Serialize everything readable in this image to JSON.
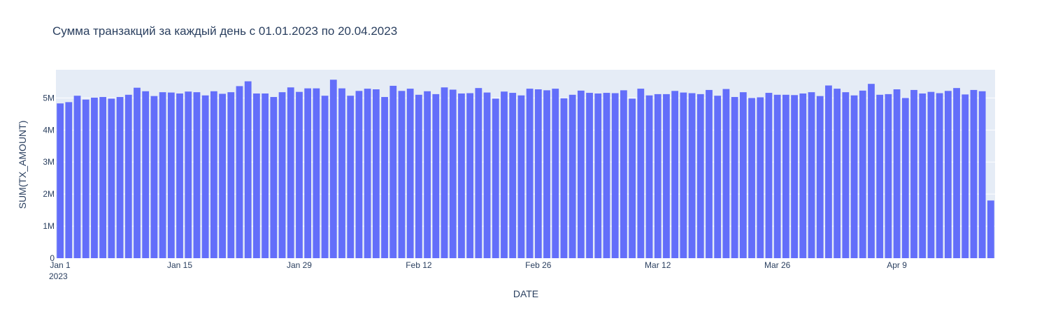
{
  "chart_data": {
    "type": "bar",
    "title": "Сумма транзакций за каждый день с 01.01.2023 по 20.04.2023",
    "xlabel": "DATE",
    "ylabel": "SUM(TX_AMOUNT)",
    "x_start": "2023-01-01",
    "x_end": "2023-04-20",
    "ylim": [
      0,
      5880000
    ],
    "grid": true,
    "legend": "none",
    "colors": {
      "bar": "#636efa",
      "plot_bg": "#e5ecf6",
      "grid": "#ffffff",
      "text": "#2a3f5f"
    },
    "y_ticks": [
      {
        "value": 0,
        "label": "0"
      },
      {
        "value": 1000000,
        "label": "1M"
      },
      {
        "value": 2000000,
        "label": "2M"
      },
      {
        "value": 3000000,
        "label": "3M"
      },
      {
        "value": 4000000,
        "label": "4M"
      },
      {
        "value": 5000000,
        "label": "5M"
      }
    ],
    "x_ticks": [
      {
        "date": "2023-01-01",
        "label": "Jan 1",
        "sublabel": "2023"
      },
      {
        "date": "2023-01-15",
        "label": "Jan 15",
        "sublabel": ""
      },
      {
        "date": "2023-01-29",
        "label": "Jan 29",
        "sublabel": ""
      },
      {
        "date": "2023-02-12",
        "label": "Feb 12",
        "sublabel": ""
      },
      {
        "date": "2023-02-26",
        "label": "Feb 26",
        "sublabel": ""
      },
      {
        "date": "2023-03-12",
        "label": "Mar 12",
        "sublabel": ""
      },
      {
        "date": "2023-03-26",
        "label": "Mar 26",
        "sublabel": ""
      },
      {
        "date": "2023-04-09",
        "label": "Apr 9",
        "sublabel": ""
      }
    ],
    "values": [
      4830000,
      4870000,
      5070000,
      4950000,
      5010000,
      5030000,
      4980000,
      5030000,
      5100000,
      5320000,
      5210000,
      5060000,
      5180000,
      5170000,
      5140000,
      5200000,
      5180000,
      5080000,
      5210000,
      5130000,
      5180000,
      5370000,
      5520000,
      5140000,
      5140000,
      5030000,
      5180000,
      5330000,
      5190000,
      5300000,
      5300000,
      5070000,
      5570000,
      5300000,
      5070000,
      5220000,
      5290000,
      5270000,
      5030000,
      5380000,
      5220000,
      5290000,
      5100000,
      5210000,
      5120000,
      5330000,
      5260000,
      5140000,
      5150000,
      5310000,
      5170000,
      4980000,
      5200000,
      5160000,
      5080000,
      5290000,
      5270000,
      5240000,
      5290000,
      4990000,
      5100000,
      5230000,
      5160000,
      5140000,
      5160000,
      5150000,
      5240000,
      4980000,
      5290000,
      5080000,
      5120000,
      5120000,
      5220000,
      5170000,
      5150000,
      5120000,
      5250000,
      5070000,
      5280000,
      5030000,
      5180000,
      5000000,
      5020000,
      5160000,
      5100000,
      5100000,
      5090000,
      5140000,
      5180000,
      5060000,
      5390000,
      5290000,
      5180000,
      5080000,
      5230000,
      5440000,
      5100000,
      5120000,
      5270000,
      5000000,
      5250000,
      5140000,
      5190000,
      5150000,
      5220000,
      5310000,
      5110000,
      5250000,
      5210000,
      1800000
    ]
  }
}
